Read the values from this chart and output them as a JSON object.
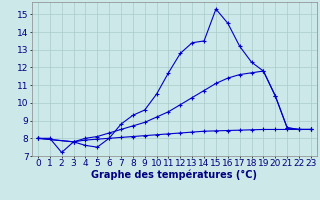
{
  "title": "Graphe des températures (°C)",
  "background_color": "#cce8e8",
  "line_color": "#0000cc",
  "xlim": [
    -0.5,
    23.5
  ],
  "ylim": [
    7.0,
    15.7
  ],
  "yticks": [
    7,
    8,
    9,
    10,
    11,
    12,
    13,
    14,
    15
  ],
  "xticks": [
    0,
    1,
    2,
    3,
    4,
    5,
    6,
    7,
    8,
    9,
    10,
    11,
    12,
    13,
    14,
    15,
    16,
    17,
    18,
    19,
    20,
    21,
    22,
    23
  ],
  "line1": {
    "x": [
      0,
      1,
      2,
      3,
      4,
      5,
      6,
      7,
      8,
      9,
      10,
      11,
      12,
      13,
      14,
      15,
      16,
      17,
      18,
      19,
      20,
      21,
      22,
      23
    ],
    "y": [
      8.0,
      8.0,
      7.2,
      7.8,
      7.6,
      7.5,
      8.0,
      8.8,
      9.3,
      9.6,
      10.5,
      11.7,
      12.8,
      13.4,
      13.5,
      15.3,
      14.5,
      13.2,
      12.3,
      11.8,
      10.4,
      8.6,
      8.5,
      8.5
    ]
  },
  "line2": {
    "x": [
      0,
      3,
      4,
      5,
      6,
      7,
      8,
      9,
      10,
      11,
      12,
      13,
      14,
      15,
      16,
      17,
      18,
      19,
      20,
      21,
      22,
      23
    ],
    "y": [
      8.0,
      7.8,
      7.9,
      7.95,
      8.0,
      8.05,
      8.1,
      8.15,
      8.2,
      8.25,
      8.3,
      8.35,
      8.4,
      8.42,
      8.44,
      8.46,
      8.48,
      8.5,
      8.5,
      8.5,
      8.5,
      8.5
    ]
  },
  "line3": {
    "x": [
      0,
      3,
      4,
      5,
      6,
      7,
      8,
      9,
      10,
      11,
      12,
      13,
      14,
      15,
      16,
      17,
      18,
      19,
      20,
      21,
      22,
      23
    ],
    "y": [
      8.0,
      7.8,
      8.0,
      8.1,
      8.3,
      8.5,
      8.7,
      8.9,
      9.2,
      9.5,
      9.9,
      10.3,
      10.7,
      11.1,
      11.4,
      11.6,
      11.7,
      11.8,
      10.4,
      8.6,
      8.5,
      8.5
    ]
  },
  "grid_color": "#aacccc",
  "xlabel_fontsize": 7,
  "tick_fontsize": 6.5
}
